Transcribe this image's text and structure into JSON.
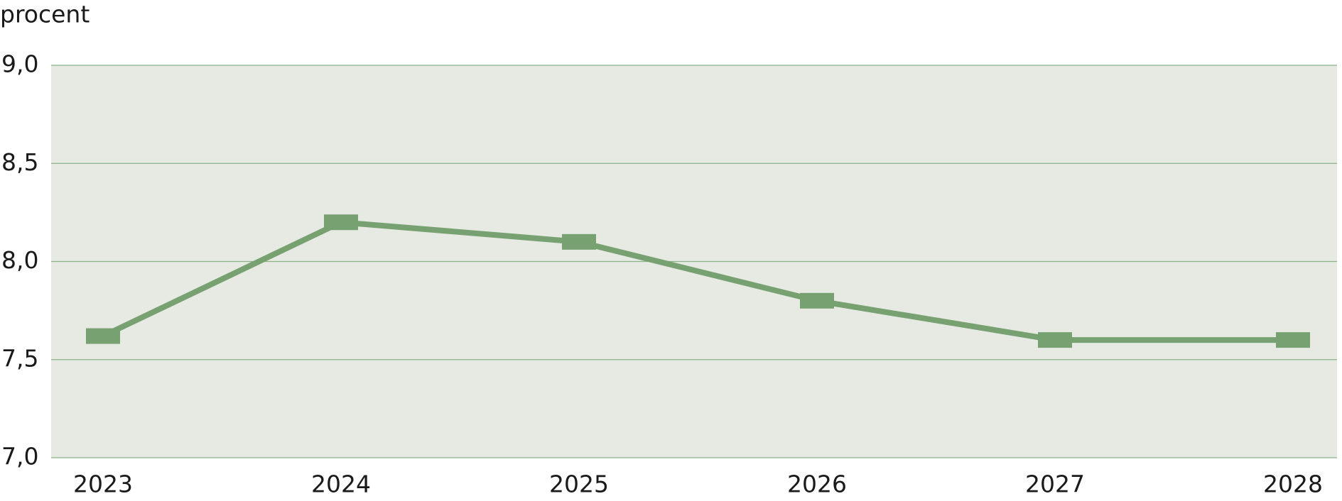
{
  "chart_data": {
    "type": "line",
    "y_label": "procent",
    "categories": [
      "2023",
      "2024",
      "2025",
      "2026",
      "2027",
      "2028"
    ],
    "series": [
      {
        "color": "#77a171",
        "values": [
          7.62,
          8.2,
          8.1,
          7.8,
          7.6,
          7.6
        ]
      }
    ],
    "ylim": [
      7.0,
      9.0
    ],
    "yticks": [
      {
        "value": 7.0,
        "label": "7,0"
      },
      {
        "value": 7.5,
        "label": "7,5"
      },
      {
        "value": 8.0,
        "label": "8,0"
      },
      {
        "value": 8.5,
        "label": "8,5"
      },
      {
        "value": 9.0,
        "label": "9,0"
      }
    ],
    "grid": true,
    "background": "#e6eae3",
    "grid_color": "#8db288"
  }
}
